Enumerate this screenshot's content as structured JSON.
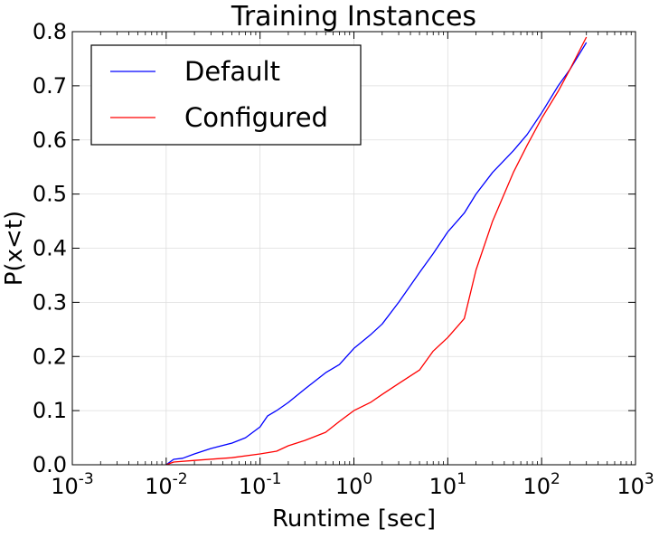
{
  "chart_data": {
    "type": "line",
    "title": "Training Instances",
    "xlabel": "Runtime [sec]",
    "ylabel": "P(x<t)",
    "xscale": "log",
    "xlim": [
      0.001,
      1000
    ],
    "ylim": [
      0.0,
      0.8
    ],
    "x_tick_labels": [
      {
        "base": "10",
        "exp": "-3",
        "value": 0.001
      },
      {
        "base": "10",
        "exp": "-2",
        "value": 0.01
      },
      {
        "base": "10",
        "exp": "-1",
        "value": 0.1
      },
      {
        "base": "10",
        "exp": "0",
        "value": 1
      },
      {
        "base": "10",
        "exp": "1",
        "value": 10
      },
      {
        "base": "10",
        "exp": "2",
        "value": 100
      },
      {
        "base": "10",
        "exp": "3",
        "value": 1000
      }
    ],
    "y_tick_labels": [
      "0.0",
      "0.1",
      "0.2",
      "0.3",
      "0.4",
      "0.5",
      "0.6",
      "0.7",
      "0.8"
    ],
    "y_tick_values": [
      0.0,
      0.1,
      0.2,
      0.3,
      0.4,
      0.5,
      0.6,
      0.7,
      0.8
    ],
    "grid": true,
    "legend_position": "top-left",
    "series": [
      {
        "name": "Default",
        "color": "#0000ff",
        "x": [
          0.01,
          0.012,
          0.015,
          0.02,
          0.03,
          0.05,
          0.07,
          0.1,
          0.12,
          0.15,
          0.2,
          0.3,
          0.5,
          0.7,
          1,
          1.5,
          2,
          3,
          5,
          7,
          10,
          15,
          20,
          30,
          50,
          70,
          100,
          150,
          200,
          300
        ],
        "values": [
          0.0,
          0.01,
          0.012,
          0.02,
          0.03,
          0.04,
          0.05,
          0.07,
          0.09,
          0.1,
          0.115,
          0.14,
          0.17,
          0.185,
          0.215,
          0.24,
          0.26,
          0.3,
          0.355,
          0.39,
          0.43,
          0.465,
          0.5,
          0.54,
          0.58,
          0.61,
          0.65,
          0.7,
          0.73,
          0.78
        ]
      },
      {
        "name": "Configured",
        "color": "#ff0000",
        "x": [
          0.01,
          0.012,
          0.02,
          0.05,
          0.1,
          0.15,
          0.2,
          0.3,
          0.5,
          0.7,
          1,
          1.5,
          2,
          3,
          5,
          7,
          10,
          15,
          20,
          30,
          50,
          70,
          100,
          150,
          200,
          300
        ],
        "values": [
          0.0,
          0.005,
          0.008,
          0.013,
          0.02,
          0.025,
          0.035,
          0.045,
          0.06,
          0.08,
          0.1,
          0.115,
          0.13,
          0.15,
          0.175,
          0.21,
          0.235,
          0.27,
          0.36,
          0.45,
          0.54,
          0.59,
          0.64,
          0.69,
          0.73,
          0.79
        ]
      }
    ]
  }
}
